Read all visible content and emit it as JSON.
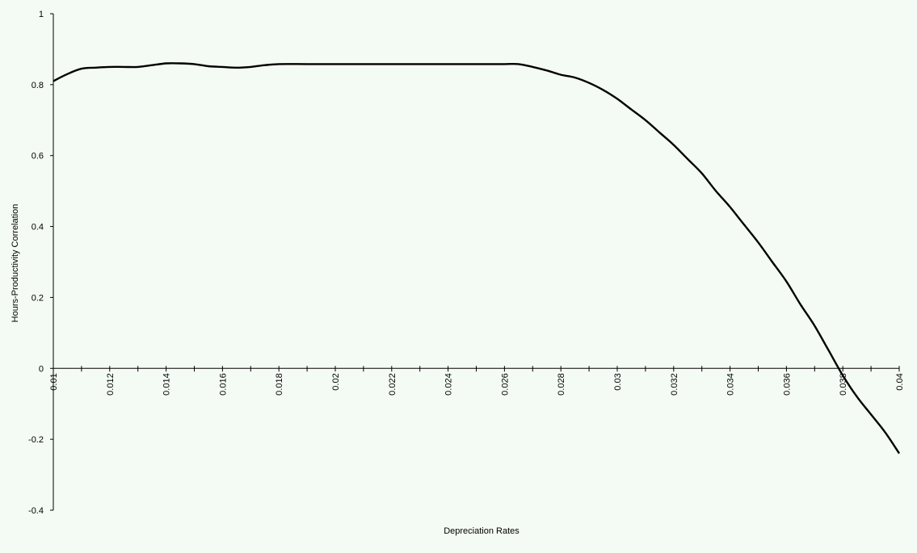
{
  "chart_data": {
    "type": "line",
    "title": "",
    "xlabel": "Depreciation Rates",
    "ylabel": "Hours-Productivity Correlation",
    "xlim": [
      0.01,
      0.04
    ],
    "ylim": [
      -0.4,
      1
    ],
    "x_ticks": [
      "0.01",
      "0.012",
      "0.014",
      "0.016",
      "0.018",
      "0.02",
      "0.022",
      "0.024",
      "0.026",
      "0.028",
      "0.03",
      "0.032",
      "0.034",
      "0.036",
      "0.038",
      "0.04"
    ],
    "y_ticks": [
      "1",
      "0.8",
      "0.6",
      "0.4",
      "0.2",
      "0",
      "-0.2",
      "-0.4"
    ],
    "grid": false,
    "line_color": "#000000",
    "background": "#f4fbf4",
    "series": [
      {
        "x": [
          0.01,
          0.0105,
          0.011,
          0.0115,
          0.012,
          0.0125,
          0.013,
          0.0135,
          0.014,
          0.0145,
          0.015,
          0.0155,
          0.016,
          0.0165,
          0.017,
          0.0175,
          0.018,
          0.019,
          0.02,
          0.021,
          0.022,
          0.023,
          0.024,
          0.025,
          0.026,
          0.0265,
          0.027,
          0.0275,
          0.028,
          0.0285,
          0.029,
          0.0295,
          0.03,
          0.0305,
          0.031,
          0.0315,
          0.032,
          0.0325,
          0.033,
          0.0335,
          0.034,
          0.0345,
          0.035,
          0.0355,
          0.036,
          0.0365,
          0.037,
          0.0375,
          0.038,
          0.0385,
          0.039,
          0.0395,
          0.04
        ],
        "y": [
          0.81,
          0.83,
          0.845,
          0.848,
          0.85,
          0.85,
          0.85,
          0.855,
          0.86,
          0.86,
          0.858,
          0.852,
          0.85,
          0.848,
          0.85,
          0.855,
          0.858,
          0.858,
          0.858,
          0.858,
          0.858,
          0.858,
          0.858,
          0.858,
          0.858,
          0.858,
          0.85,
          0.84,
          0.828,
          0.82,
          0.805,
          0.785,
          0.76,
          0.73,
          0.7,
          0.665,
          0.63,
          0.59,
          0.55,
          0.5,
          0.455,
          0.405,
          0.355,
          0.3,
          0.245,
          0.18,
          0.12,
          0.05,
          -0.02,
          -0.08,
          -0.13,
          -0.18,
          -0.24
        ]
      }
    ]
  }
}
